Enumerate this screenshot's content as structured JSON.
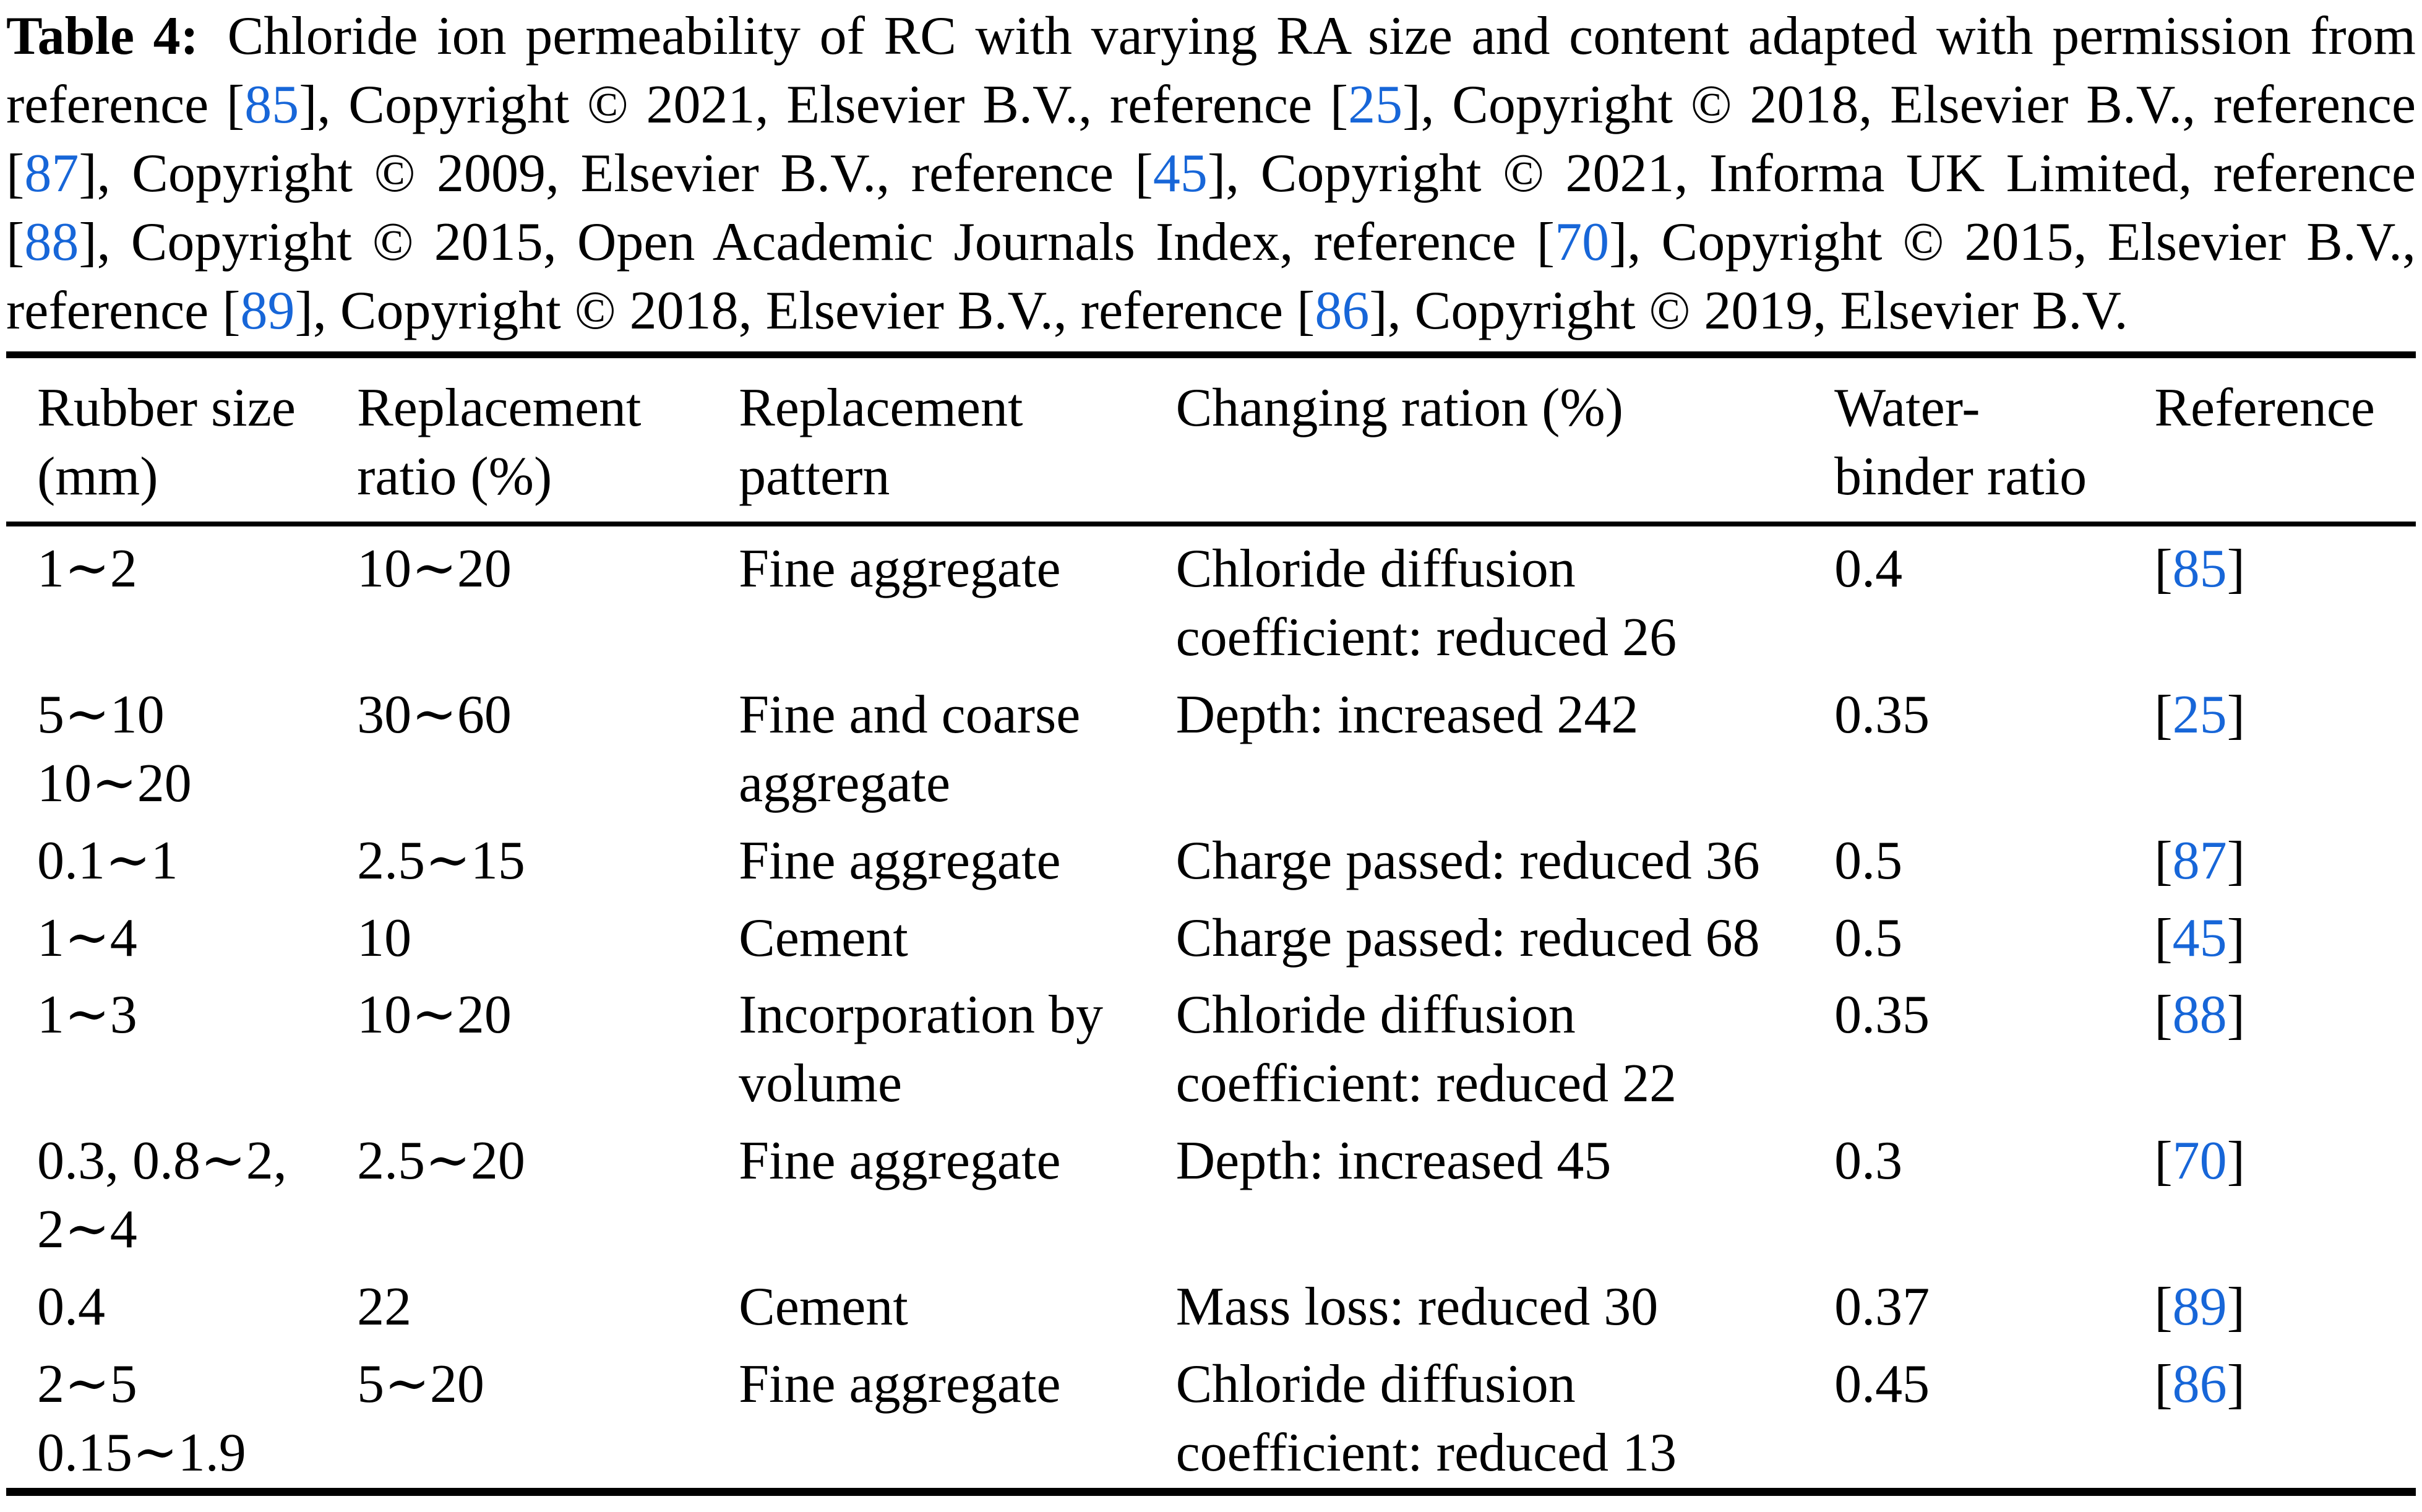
{
  "page": {
    "background_color": "#ffffff",
    "text_color": "#000000",
    "link_color": "#1766d8"
  },
  "caption": {
    "segments": [
      {
        "type": "bold",
        "text": "Table 4:"
      },
      {
        "type": "text",
        "text": " Chloride ion permeability of RC with varying RA size and content adapted with permission from reference ["
      },
      {
        "type": "ref",
        "text": "85"
      },
      {
        "type": "text",
        "text": "], Copyright © 2021, Elsevier B.V., reference ["
      },
      {
        "type": "ref",
        "text": "25"
      },
      {
        "type": "text",
        "text": "], Copyright © 2018, Elsevier B.V., reference ["
      },
      {
        "type": "ref",
        "text": "87"
      },
      {
        "type": "text",
        "text": "], Copyright © 2009, Elsevier B.V., reference ["
      },
      {
        "type": "ref",
        "text": "45"
      },
      {
        "type": "text",
        "text": "], Copyright © 2021, Informa UK Limited, reference ["
      },
      {
        "type": "ref",
        "text": "88"
      },
      {
        "type": "text",
        "text": "], Copyright © 2015, Open Academic Journals Index, reference ["
      },
      {
        "type": "ref",
        "text": "70"
      },
      {
        "type": "text",
        "text": "], Copyright © 2015, Elsevier B.V., reference ["
      },
      {
        "type": "ref",
        "text": "89"
      },
      {
        "type": "text",
        "text": "], Copyright © 2018, Elsevier B.V., reference ["
      },
      {
        "type": "ref",
        "text": "86"
      },
      {
        "type": "text",
        "text": "], Copyright © 2019, Elsevier B.V."
      }
    ]
  },
  "table": {
    "ref_bracket_open": "[",
    "ref_bracket_close": "]",
    "columns": [
      {
        "key": "rubber_size",
        "label": "Rubber size\n(mm)"
      },
      {
        "key": "replacement_ratio",
        "label": "Replacement\nratio (%)"
      },
      {
        "key": "replacement_pattern",
        "label": "Replacement\npattern"
      },
      {
        "key": "changing_ration",
        "label": "Changing ration (%)"
      },
      {
        "key": "water_binder_ratio",
        "label": "Water-\nbinder ratio"
      },
      {
        "key": "reference",
        "label": "Reference"
      }
    ],
    "rows": [
      {
        "rubber_size": "1∼2",
        "replacement_ratio": "10∼20",
        "replacement_pattern": "Fine aggregate",
        "changing_ration": "Chloride diffusion\ncoefficient: reduced 26",
        "water_binder_ratio": "0.4",
        "reference": "85"
      },
      {
        "rubber_size": "5∼10\n10∼20",
        "replacement_ratio": "30∼60",
        "replacement_pattern": "Fine and coarse\naggregate",
        "changing_ration": "Depth: increased 242",
        "water_binder_ratio": "0.35",
        "reference": "25"
      },
      {
        "rubber_size": "0.1∼1",
        "replacement_ratio": "2.5∼15",
        "replacement_pattern": "Fine aggregate",
        "changing_ration": "Charge passed: reduced 36",
        "water_binder_ratio": "0.5",
        "reference": "87"
      },
      {
        "rubber_size": "1∼4",
        "replacement_ratio": "10",
        "replacement_pattern": "Cement",
        "changing_ration": "Charge passed: reduced 68",
        "water_binder_ratio": "0.5",
        "reference": "45"
      },
      {
        "rubber_size": "1∼3",
        "replacement_ratio": "10∼20",
        "replacement_pattern": "Incorporation by\nvolume",
        "changing_ration": "Chloride diffusion\ncoefficient: reduced 22",
        "water_binder_ratio": "0.35",
        "reference": "88"
      },
      {
        "rubber_size": "0.3, 0.8∼2,\n2∼4",
        "replacement_ratio": "2.5∼20",
        "replacement_pattern": "Fine aggregate",
        "changing_ration": "Depth: increased 45",
        "water_binder_ratio": "0.3",
        "reference": "70"
      },
      {
        "rubber_size": "0.4",
        "replacement_ratio": "22",
        "replacement_pattern": "Cement",
        "changing_ration": "Mass loss: reduced 30",
        "water_binder_ratio": "0.37",
        "reference": "89"
      },
      {
        "rubber_size": "2∼5\n0.15∼1.9",
        "replacement_ratio": "5∼20",
        "replacement_pattern": "Fine aggregate",
        "changing_ration": "Chloride diffusion\ncoefficient: reduced 13",
        "water_binder_ratio": "0.45",
        "reference": "86"
      }
    ]
  }
}
